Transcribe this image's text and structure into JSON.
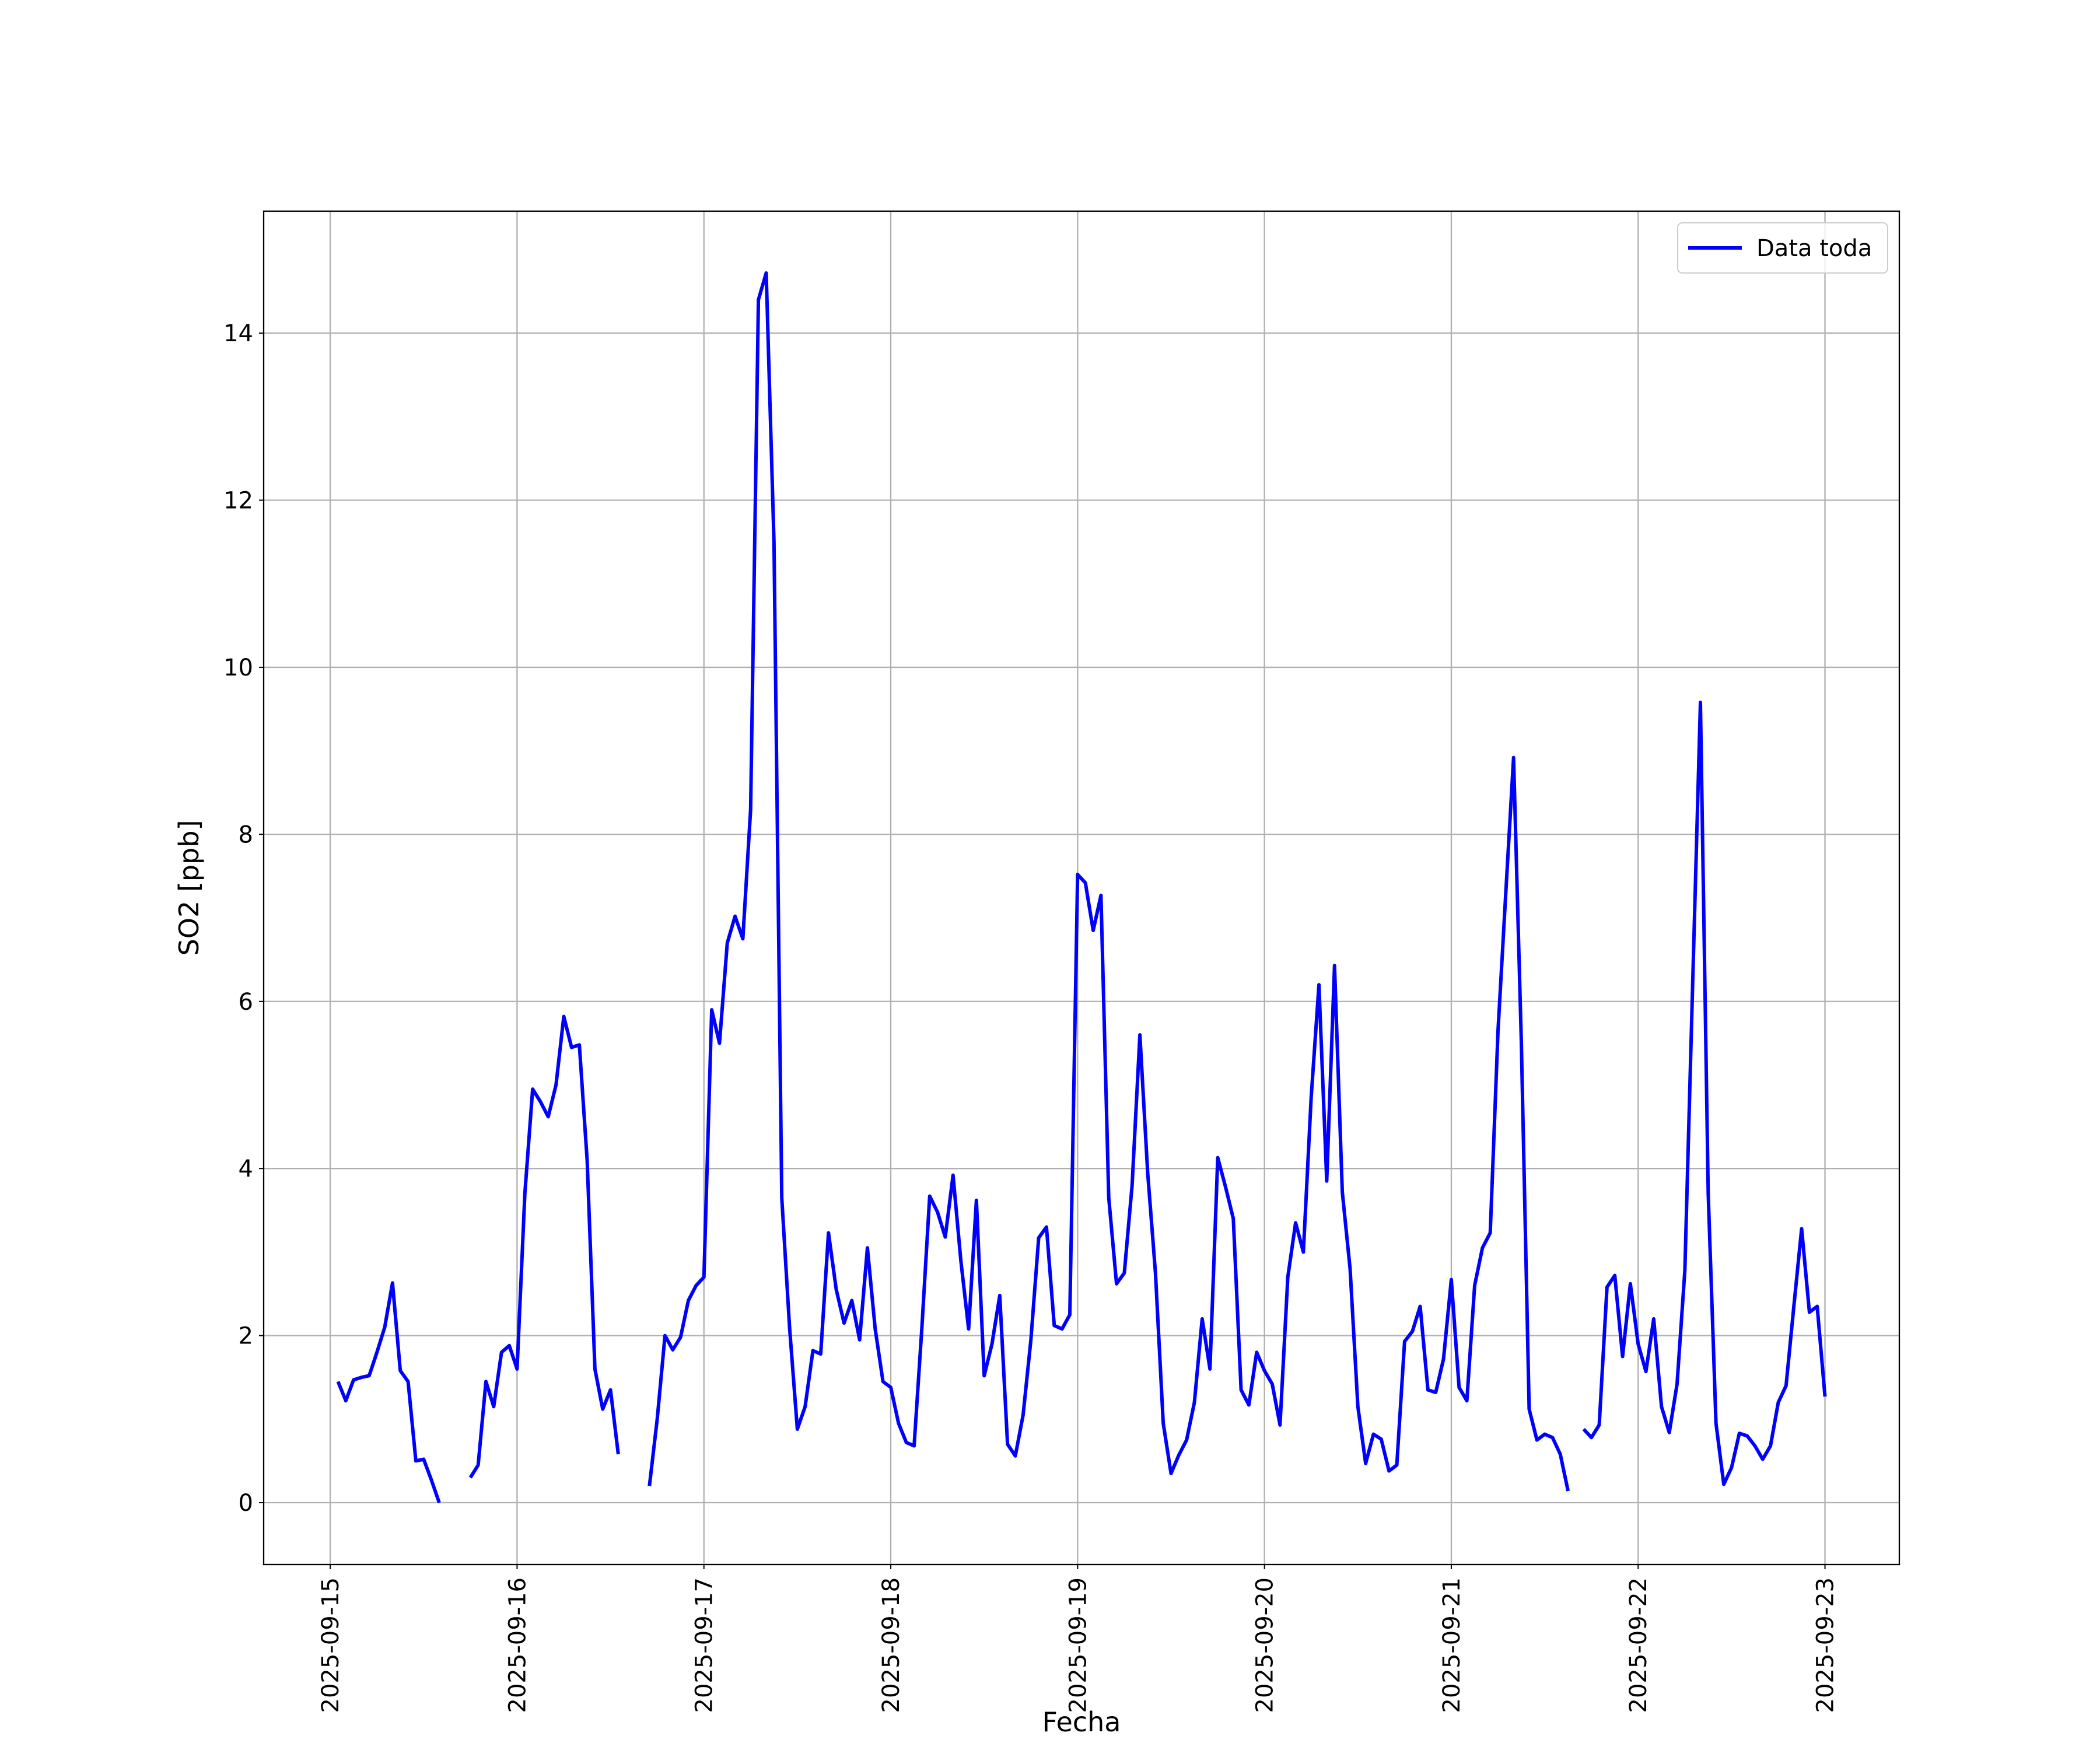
{
  "chart_data": {
    "type": "line",
    "xlabel": "Fecha",
    "ylabel": "SO2 [ppb]",
    "x": [
      "2025-09-15 01:00",
      "2025-09-15 02:00",
      "2025-09-15 03:00",
      "2025-09-15 04:00",
      "2025-09-15 05:00",
      "2025-09-15 06:00",
      "2025-09-15 07:00",
      "2025-09-15 08:00",
      "2025-09-15 09:00",
      "2025-09-15 10:00",
      "2025-09-15 11:00",
      "2025-09-15 12:00",
      "2025-09-15 13:00",
      "2025-09-15 14:00",
      "2025-09-15 15:00",
      "2025-09-15 16:00",
      "2025-09-15 17:00",
      "2025-09-15 18:00",
      "2025-09-15 19:00",
      "2025-09-15 20:00",
      "2025-09-15 21:00",
      "2025-09-15 22:00",
      "2025-09-15 23:00",
      "2025-09-16 00:00",
      "2025-09-16 01:00",
      "2025-09-16 02:00",
      "2025-09-16 03:00",
      "2025-09-16 04:00",
      "2025-09-16 05:00",
      "2025-09-16 06:00",
      "2025-09-16 07:00",
      "2025-09-16 08:00",
      "2025-09-16 09:00",
      "2025-09-16 10:00",
      "2025-09-16 11:00",
      "2025-09-16 12:00",
      "2025-09-16 13:00",
      "2025-09-16 14:00",
      "2025-09-16 15:00",
      "2025-09-16 16:00",
      "2025-09-16 17:00",
      "2025-09-16 18:00",
      "2025-09-16 19:00",
      "2025-09-16 20:00",
      "2025-09-16 21:00",
      "2025-09-16 22:00",
      "2025-09-16 23:00",
      "2025-09-17 00:00",
      "2025-09-17 01:00",
      "2025-09-17 02:00",
      "2025-09-17 03:00",
      "2025-09-17 04:00",
      "2025-09-17 05:00",
      "2025-09-17 06:00",
      "2025-09-17 07:00",
      "2025-09-17 08:00",
      "2025-09-17 09:00",
      "2025-09-17 10:00",
      "2025-09-17 11:00",
      "2025-09-17 12:00",
      "2025-09-17 13:00",
      "2025-09-17 14:00",
      "2025-09-17 15:00",
      "2025-09-17 16:00",
      "2025-09-17 17:00",
      "2025-09-17 18:00",
      "2025-09-17 19:00",
      "2025-09-17 20:00",
      "2025-09-17 21:00",
      "2025-09-17 22:00",
      "2025-09-17 23:00",
      "2025-09-18 00:00",
      "2025-09-18 01:00",
      "2025-09-18 02:00",
      "2025-09-18 03:00",
      "2025-09-18 04:00",
      "2025-09-18 05:00",
      "2025-09-18 06:00",
      "2025-09-18 07:00",
      "2025-09-18 08:00",
      "2025-09-18 09:00",
      "2025-09-18 10:00",
      "2025-09-18 11:00",
      "2025-09-18 12:00",
      "2025-09-18 13:00",
      "2025-09-18 14:00",
      "2025-09-18 15:00",
      "2025-09-18 16:00",
      "2025-09-18 17:00",
      "2025-09-18 18:00",
      "2025-09-18 19:00",
      "2025-09-18 20:00",
      "2025-09-18 21:00",
      "2025-09-18 22:00",
      "2025-09-18 23:00",
      "2025-09-19 00:00",
      "2025-09-19 01:00",
      "2025-09-19 02:00",
      "2025-09-19 03:00",
      "2025-09-19 04:00",
      "2025-09-19 05:00",
      "2025-09-19 06:00",
      "2025-09-19 07:00",
      "2025-09-19 08:00",
      "2025-09-19 09:00",
      "2025-09-19 10:00",
      "2025-09-19 11:00",
      "2025-09-19 12:00",
      "2025-09-19 13:00",
      "2025-09-19 14:00",
      "2025-09-19 15:00",
      "2025-09-19 16:00",
      "2025-09-19 17:00",
      "2025-09-19 18:00",
      "2025-09-19 19:00",
      "2025-09-19 20:00",
      "2025-09-19 21:00",
      "2025-09-19 22:00",
      "2025-09-19 23:00",
      "2025-09-20 00:00",
      "2025-09-20 01:00",
      "2025-09-20 02:00",
      "2025-09-20 03:00",
      "2025-09-20 04:00",
      "2025-09-20 05:00",
      "2025-09-20 06:00",
      "2025-09-20 07:00",
      "2025-09-20 08:00",
      "2025-09-20 09:00",
      "2025-09-20 10:00",
      "2025-09-20 11:00",
      "2025-09-20 12:00",
      "2025-09-20 13:00",
      "2025-09-20 14:00",
      "2025-09-20 15:00",
      "2025-09-20 16:00",
      "2025-09-20 17:00",
      "2025-09-20 18:00",
      "2025-09-20 19:00",
      "2025-09-20 20:00",
      "2025-09-20 21:00",
      "2025-09-20 22:00",
      "2025-09-20 23:00",
      "2025-09-21 00:00",
      "2025-09-21 01:00",
      "2025-09-21 02:00",
      "2025-09-21 03:00",
      "2025-09-21 04:00",
      "2025-09-21 05:00",
      "2025-09-21 06:00",
      "2025-09-21 07:00",
      "2025-09-21 08:00",
      "2025-09-21 09:00",
      "2025-09-21 10:00",
      "2025-09-21 11:00",
      "2025-09-21 12:00",
      "2025-09-21 13:00",
      "2025-09-21 14:00",
      "2025-09-21 15:00",
      "2025-09-21 16:00",
      "2025-09-21 17:00",
      "2025-09-21 18:00",
      "2025-09-21 19:00",
      "2025-09-21 20:00",
      "2025-09-21 21:00",
      "2025-09-21 22:00",
      "2025-09-21 23:00",
      "2025-09-22 00:00",
      "2025-09-22 01:00",
      "2025-09-22 02:00",
      "2025-09-22 03:00",
      "2025-09-22 04:00",
      "2025-09-22 05:00",
      "2025-09-22 06:00",
      "2025-09-22 07:00",
      "2025-09-22 08:00",
      "2025-09-22 09:00",
      "2025-09-22 10:00",
      "2025-09-22 11:00",
      "2025-09-22 12:00",
      "2025-09-22 13:00",
      "2025-09-22 14:00",
      "2025-09-22 15:00",
      "2025-09-22 16:00",
      "2025-09-22 17:00",
      "2025-09-22 18:00",
      "2025-09-22 19:00",
      "2025-09-22 20:00",
      "2025-09-22 21:00",
      "2025-09-22 22:00",
      "2025-09-22 23:00",
      "2025-09-23 00:00"
    ],
    "series": [
      {
        "name": "Data toda",
        "color": "#0000ff",
        "values": [
          1.45,
          1.22,
          1.47,
          1.5,
          1.52,
          1.8,
          2.1,
          2.63,
          1.58,
          1.45,
          0.5,
          0.52,
          0.27,
          0.0,
          null,
          null,
          null,
          0.3,
          0.45,
          1.45,
          1.15,
          1.8,
          1.88,
          1.6,
          3.7,
          4.95,
          4.8,
          4.62,
          5.0,
          5.82,
          5.45,
          5.48,
          4.1,
          1.6,
          1.12,
          1.35,
          0.58,
          null,
          null,
          null,
          0.2,
          1.0,
          2.0,
          1.83,
          1.98,
          2.42,
          2.6,
          2.7,
          5.9,
          5.5,
          6.7,
          7.02,
          6.75,
          8.3,
          14.4,
          14.72,
          11.5,
          3.65,
          2.1,
          0.88,
          1.15,
          1.82,
          1.78,
          3.23,
          2.55,
          2.15,
          2.42,
          1.95,
          3.05,
          2.08,
          1.45,
          1.38,
          0.95,
          0.72,
          0.68,
          2.1,
          3.67,
          3.48,
          3.18,
          3.92,
          2.9,
          2.08,
          3.62,
          1.52,
          1.9,
          2.48,
          0.7,
          0.56,
          1.05,
          1.95,
          3.17,
          3.3,
          2.12,
          2.08,
          2.25,
          7.52,
          7.42,
          6.85,
          7.27,
          3.65,
          2.62,
          2.75,
          3.8,
          5.6,
          3.95,
          2.75,
          0.95,
          0.35,
          0.57,
          0.75,
          1.2,
          2.2,
          1.6,
          4.13,
          3.78,
          3.4,
          1.35,
          1.17,
          1.8,
          1.58,
          1.42,
          0.93,
          2.7,
          3.35,
          3.0,
          4.85,
          6.2,
          3.85,
          6.43,
          3.72,
          2.8,
          1.15,
          0.47,
          0.82,
          0.76,
          0.38,
          0.45,
          1.93,
          2.05,
          2.35,
          1.35,
          1.32,
          1.72,
          2.67,
          1.38,
          1.22,
          2.6,
          3.05,
          3.23,
          5.65,
          7.3,
          8.92,
          5.5,
          1.12,
          0.75,
          0.82,
          0.78,
          0.58,
          0.14,
          null,
          0.88,
          0.78,
          0.93,
          2.58,
          2.72,
          1.75,
          2.62,
          1.9,
          1.57,
          2.2,
          1.15,
          0.84,
          1.42,
          2.78,
          6.2,
          9.58,
          3.7,
          0.95,
          0.22,
          0.42,
          0.83,
          0.8,
          0.68,
          0.52,
          0.68,
          1.2,
          1.4,
          2.35,
          3.28,
          2.28,
          2.35,
          1.27
        ]
      }
    ],
    "xlim": [
      "2025-09-14 15:27",
      "2025-09-23 09:33"
    ],
    "xticks": [
      "2025-09-15",
      "2025-09-16",
      "2025-09-17",
      "2025-09-18",
      "2025-09-19",
      "2025-09-20",
      "2025-09-21",
      "2025-09-22",
      "2025-09-23"
    ],
    "ylim": [
      -0.74,
      15.46
    ],
    "yticks": [
      0,
      2,
      4,
      6,
      8,
      10,
      12,
      14
    ],
    "grid": true,
    "legend": "upper right"
  }
}
